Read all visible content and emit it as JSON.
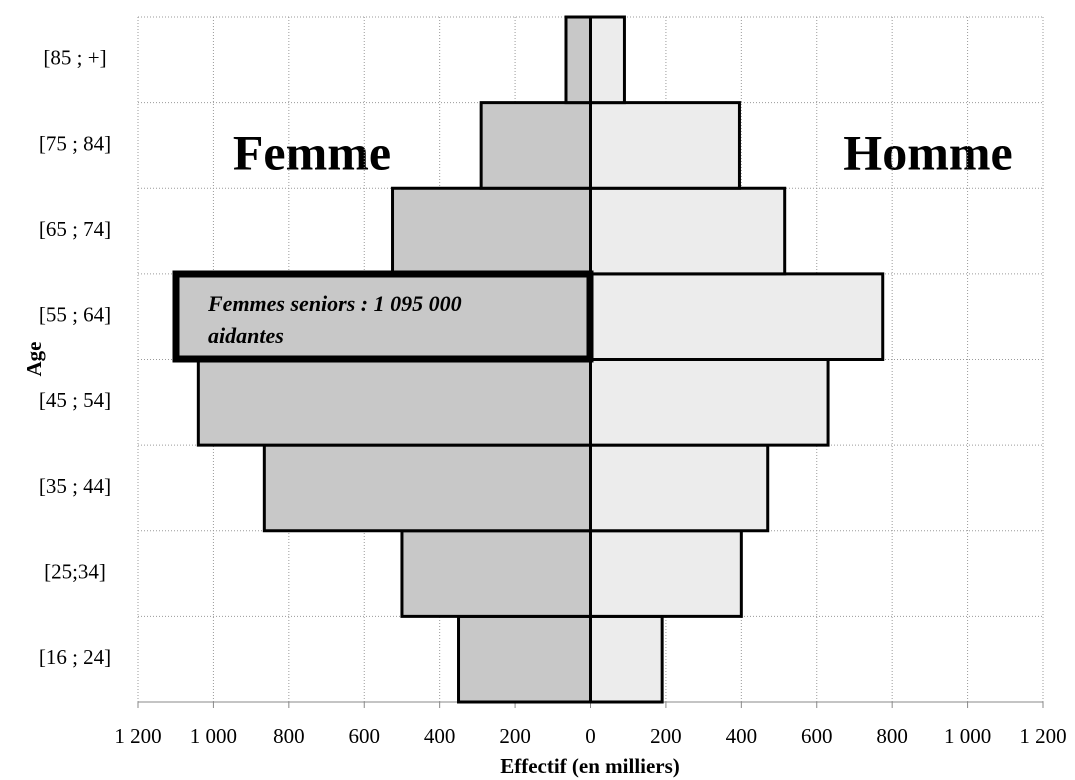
{
  "chart_data": {
    "type": "pyramid",
    "y_label": "Age",
    "x_label": "Effectif (en milliers)",
    "categories": [
      "[16 ; 24]",
      "[25;34]",
      "[35 ; 44]",
      "[45 ; 54]",
      "[55 ; 64]",
      "[65 ; 74]",
      "[75 ; 84]",
      "[85 ; +]"
    ],
    "series": [
      {
        "name": "Femme",
        "color": "#c8c8c8",
        "side": "left",
        "values": [
          350,
          500,
          865,
          1040,
          1095,
          525,
          290,
          65
        ]
      },
      {
        "name": "Homme",
        "color": "#ececec",
        "side": "right",
        "values": [
          190,
          400,
          470,
          630,
          775,
          515,
          395,
          90
        ]
      }
    ],
    "annotation": "Femmes seniors : 1 095 000 aidantes",
    "xlim": [
      -1200,
      1200
    ],
    "xticks": [
      {
        "value": -1200,
        "label": "1 200"
      },
      {
        "value": -1000,
        "label": "1 000"
      },
      {
        "value": -800,
        "label": "800"
      },
      {
        "value": -600,
        "label": "600"
      },
      {
        "value": -400,
        "label": "400"
      },
      {
        "value": -200,
        "label": "200"
      },
      0,
      200,
      400,
      600,
      800,
      {
        "value": 1000,
        "label": "1 000"
      },
      {
        "value": 1200,
        "label": "1 200"
      }
    ],
    "grid": true
  }
}
